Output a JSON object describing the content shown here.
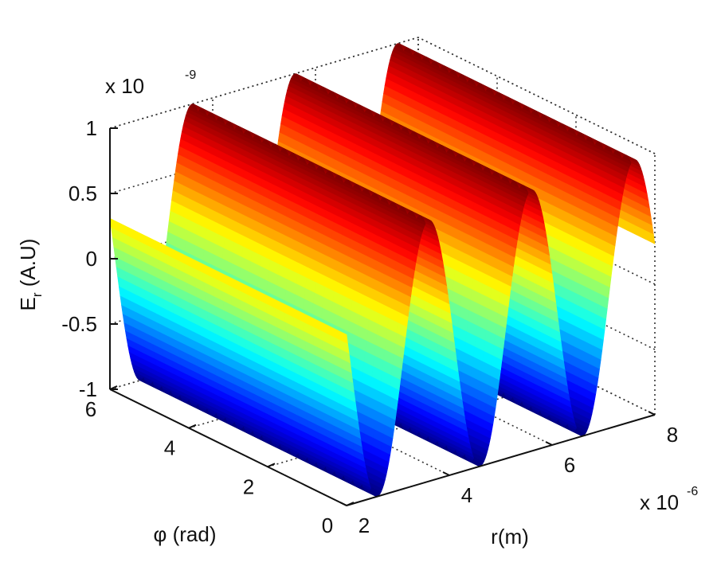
{
  "chart_data": {
    "type": "surface",
    "colormap": "jet",
    "title": "",
    "zlabel_main": "E",
    "zlabel_sub": "r",
    "zlabel_unit": " (A.U)",
    "xlabel": "r(m)",
    "ylabel": "φ (rad)",
    "x_range": [
      2e-06,
      8e-06
    ],
    "y_range": [
      0,
      6
    ],
    "z_range": [
      -1e-09,
      1e-09
    ],
    "x_ticks": [
      "2",
      "4",
      "6",
      "8"
    ],
    "y_ticks": [
      "0",
      "2",
      "4",
      "6"
    ],
    "z_ticks": [
      "-1",
      "-0.5",
      "0",
      "0.5",
      "1"
    ],
    "x_multiplier": {
      "base": "x 10",
      "exponent": "-6"
    },
    "z_multiplier": {
      "base": "x 10",
      "exponent": "-9"
    },
    "surface": {
      "function": "E_r = sin(k r), constant along phi",
      "wavelength_m": 2e-06,
      "amplitude": 1e-09,
      "samples": [
        {
          "r": 2e-06,
          "E": 3e-10
        },
        {
          "r": 2.6e-06,
          "E": -1e-09
        },
        {
          "r": 3.6e-06,
          "E": 1e-09
        },
        {
          "r": 4.6e-06,
          "E": -1e-09
        },
        {
          "r": 5.6e-06,
          "E": 1e-09
        },
        {
          "r": 6.6e-06,
          "E": -1e-09
        },
        {
          "r": 7.6e-06,
          "E": 1e-09
        },
        {
          "r": 8e-06,
          "E": 3e-10
        }
      ]
    },
    "grid": true
  }
}
